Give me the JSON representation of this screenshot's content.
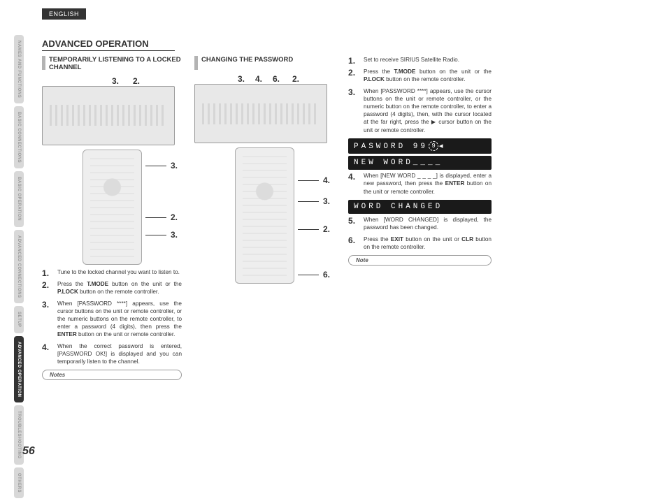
{
  "lang": "ENGLISH",
  "page_title": "ADVANCED OPERATION",
  "page_number": "56",
  "sidebar": [
    {
      "label": "NAMES AND FUNCTIONS",
      "active": false
    },
    {
      "label": "BASIC CONNECTIONS",
      "active": false
    },
    {
      "label": "BASIC OPERATION",
      "active": false
    },
    {
      "label": "ADVANCED CONNECTIONS",
      "active": false
    },
    {
      "label": "SETUP",
      "active": false,
      "small": true
    },
    {
      "label": "ADVANCED OPERATION",
      "active": true
    },
    {
      "label": "TROUBLESHOOTING",
      "active": false
    },
    {
      "label": "OTHERS",
      "active": false,
      "small": true
    }
  ],
  "col1": {
    "heading": "TEMPORARILY LISTENING TO A LOCKED CHANNEL",
    "device_callouts": [
      "3.",
      "2."
    ],
    "remote_callouts": [
      "3.",
      "2.",
      "3."
    ],
    "steps": [
      {
        "text": "Tune to the locked channel you want to listen to."
      },
      {
        "parts": [
          "Press the ",
          {
            "b": "T.MODE"
          },
          " button on the unit or the ",
          {
            "b": "P.LOCK"
          },
          " button on the remote controller."
        ]
      },
      {
        "parts": [
          "When [PASSWORD ****] appears, use the cursor buttons on the unit or remote controller, or the numeric buttons on the remote controller, to enter a password (4 digits), then press the ",
          {
            "b": "ENTER"
          },
          " button on the unit or remote controller."
        ]
      },
      {
        "text": "When the correct password is entered, [PASSWORD OK!] is displayed and you can temporarily listen to the channel."
      }
    ],
    "note_label": "Notes"
  },
  "col2": {
    "heading": "CHANGING THE PASSWORD",
    "device_callouts": [
      "3.",
      "4.",
      "6.",
      "2."
    ],
    "remote_callouts": [
      "4.",
      "3.",
      "2.",
      "6."
    ]
  },
  "col3": {
    "steps": [
      {
        "text": "Set to receive SIRIUS Satellite Radio."
      },
      {
        "parts": [
          "Press the ",
          {
            "b": "T.MODE"
          },
          " button on the unit or the ",
          {
            "b": "P.LOCK"
          },
          " button on the remote controller."
        ]
      },
      {
        "parts": [
          "When [PASSWORD ****] appears, use the cursor buttons on the unit or remote controller, or the numeric button on the remote controller, to enter a password (4 digits), then, with the cursor located at the far right, press the ",
          {
            "sym": "▶"
          },
          " cursor button on the unit or remote controller."
        ]
      }
    ],
    "display1": "PASWORD 99",
    "display1_cursor": "9",
    "display2": "NEW WORD____",
    "steps_b": [
      {
        "parts": [
          "When [NEW WORD _ _ _ _] is displayed, enter a new password, then press the ",
          {
            "b": "ENTER"
          },
          " button on the unit or remote controller."
        ]
      }
    ],
    "display3": "WORD CHANGED",
    "steps_c": [
      {
        "text": "When [WORD CHANGED] is displayed, the password has been changed."
      },
      {
        "parts": [
          "Press the ",
          {
            "b": "EXIT"
          },
          " button on the unit or ",
          {
            "b": "CLR"
          },
          " button on the remote controller."
        ]
      }
    ],
    "note_label": "Note"
  }
}
